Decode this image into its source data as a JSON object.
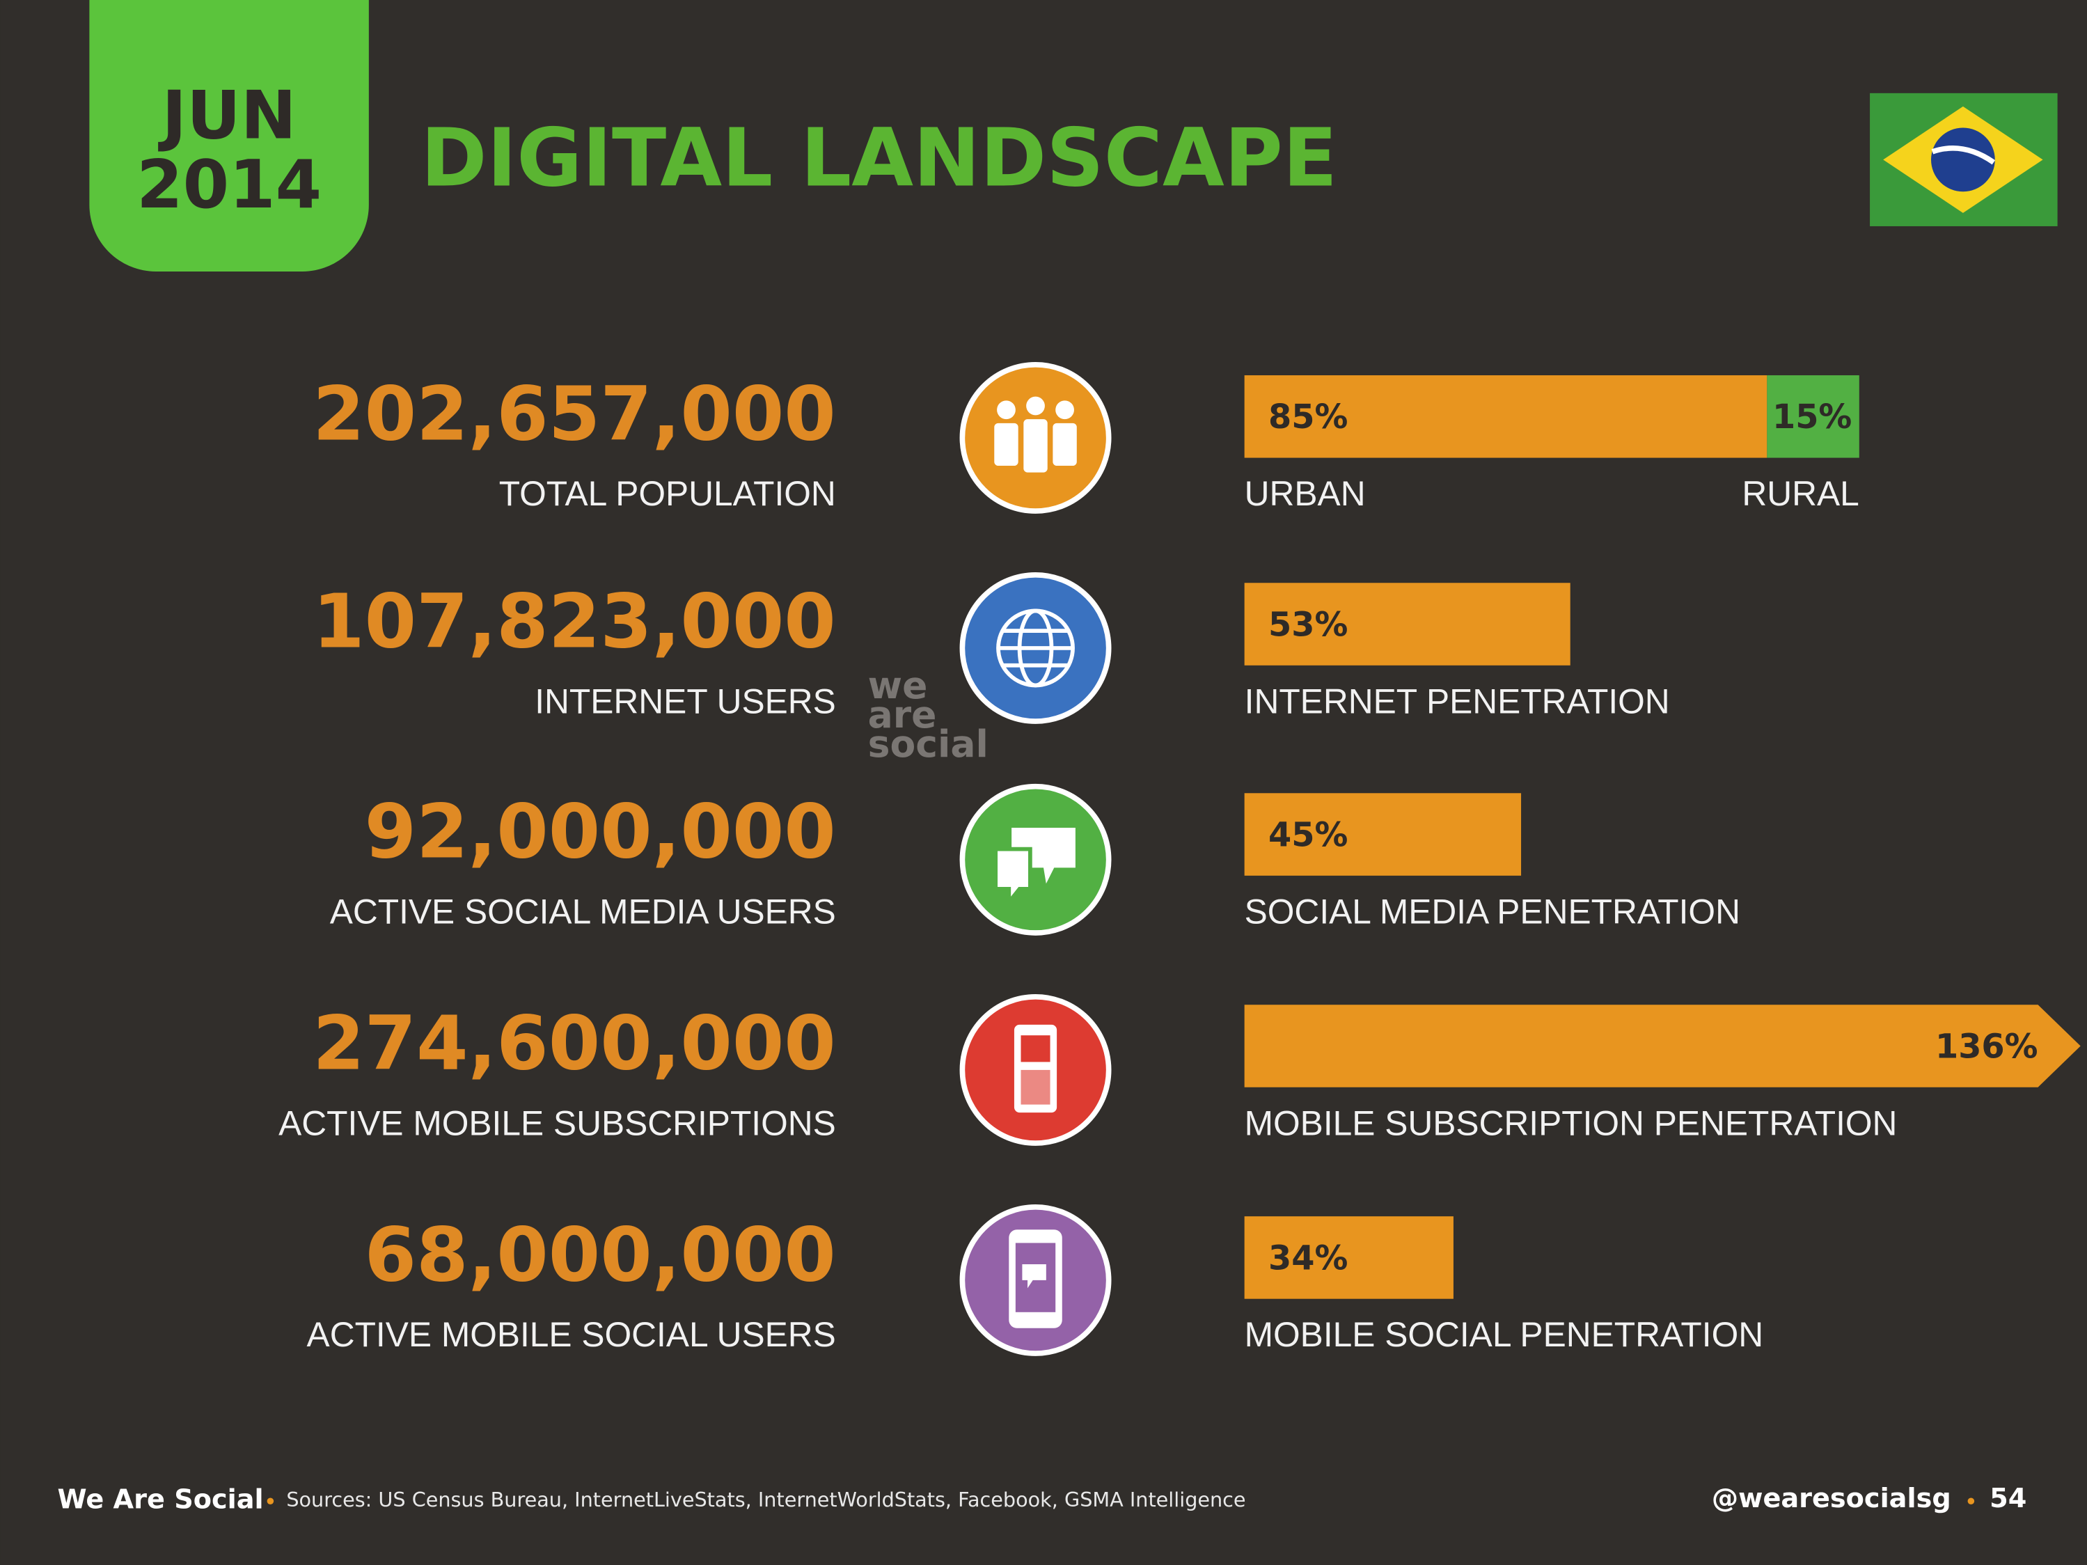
{
  "badge": {
    "month": "JUN",
    "year": "2014"
  },
  "title": "DIGITAL LANDSCAPE",
  "rows": [
    {
      "figure": "202,657,000",
      "label": "TOTAL POPULATION",
      "bars": [
        {
          "value": 85,
          "value_label": "85%",
          "color": "#e8951f"
        },
        {
          "value": 15,
          "value_label": "15%",
          "color": "#52b043"
        }
      ],
      "bar_labels": [
        "URBAN",
        "RURAL"
      ]
    },
    {
      "figure": "107,823,000",
      "label": "INTERNET USERS",
      "bars": [
        {
          "value": 53,
          "value_label": "53%",
          "color": "#e8951f"
        }
      ],
      "bar_labels": [
        "INTERNET PENETRATION"
      ]
    },
    {
      "figure": "92,000,000",
      "label": "ACTIVE SOCIAL MEDIA USERS",
      "bars": [
        {
          "value": 45,
          "value_label": "45%",
          "color": "#e8951f"
        }
      ],
      "bar_labels": [
        "SOCIAL MEDIA PENETRATION"
      ]
    },
    {
      "figure": "274,600,000",
      "label": "ACTIVE MOBILE SUBSCRIPTIONS",
      "bars": [
        {
          "value": 136,
          "value_label": "136%",
          "color": "#e8951f"
        }
      ],
      "bar_labels": [
        "MOBILE SUBSCRIPTION PENETRATION"
      ]
    },
    {
      "figure": "68,000,000",
      "label": "ACTIVE MOBILE SOCIAL USERS",
      "bars": [
        {
          "value": 34,
          "value_label": "34%",
          "color": "#e8951f"
        }
      ],
      "bar_labels": [
        "MOBILE SOCIAL PENETRATION"
      ]
    }
  ],
  "watermark": [
    "we",
    "are",
    "social"
  ],
  "footer": {
    "brand": "We Are Social",
    "sources": "Sources: US Census Bureau, InternetLiveStats, InternetWorldStats, Facebook, GSMA Intelligence",
    "handle": "@wearesocialsg",
    "page": "54"
  }
}
